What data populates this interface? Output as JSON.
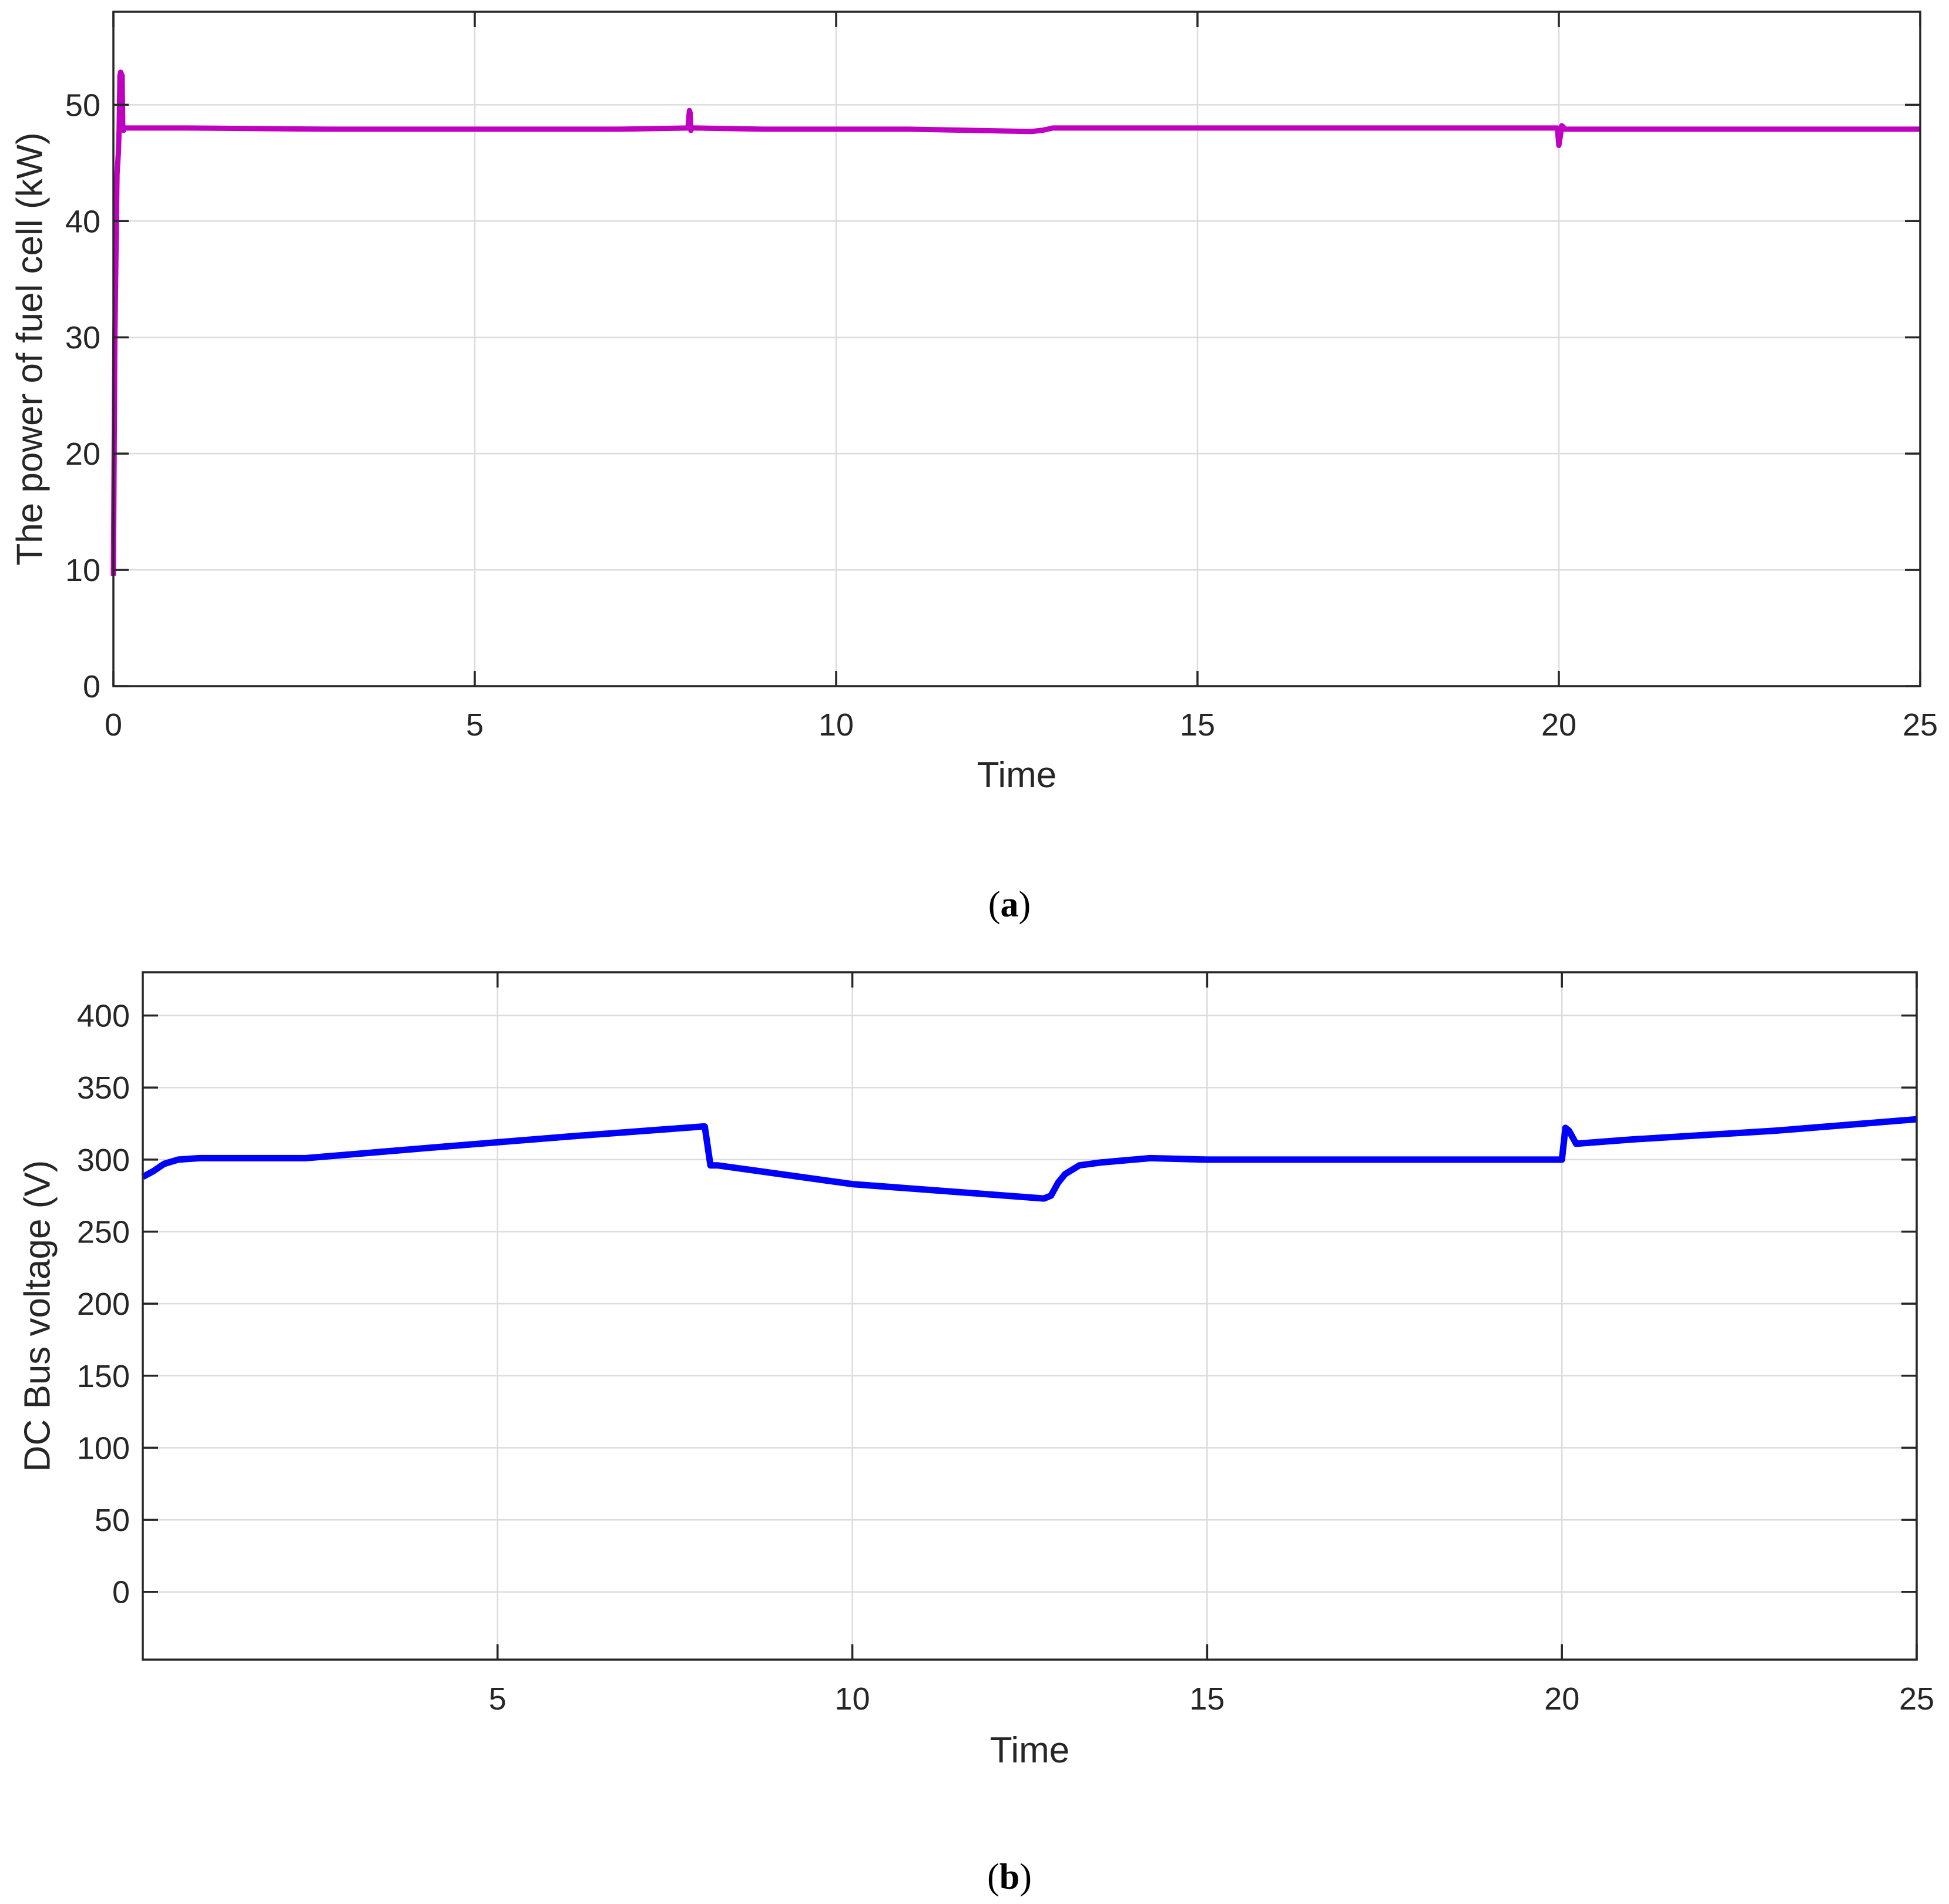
{
  "chart_data": [
    {
      "type": "line",
      "panel_label": "a",
      "xlabel": "Time",
      "ylabel": "The power of fuel cell (kW)",
      "xlim": [
        0,
        25
      ],
      "ylim": [
        0,
        58
      ],
      "xticks": [
        0,
        5,
        10,
        15,
        20,
        25
      ],
      "yticks": [
        0,
        10,
        20,
        30,
        40,
        50
      ],
      "grid": true,
      "series": [
        {
          "color": "#c000c0",
          "x": [
            0,
            0.02,
            0.05,
            0.07,
            0.08,
            0.09,
            0.1,
            0.12,
            0.13,
            0.14,
            0.15,
            0.2,
            1,
            3,
            5,
            7,
            7.95,
            7.97,
            7.98,
            7.99,
            8.0,
            8.02,
            8.05,
            9,
            11,
            12.7,
            12.85,
            13.0,
            14,
            15,
            17,
            19,
            19.98,
            20.0,
            20.02,
            20.04,
            20.06,
            20.08,
            20.2,
            21,
            23,
            25
          ],
          "y": [
            9.5,
            30,
            44,
            46,
            48,
            52.5,
            52.8,
            52.5,
            48,
            47.8,
            48,
            48,
            48,
            47.9,
            47.9,
            47.9,
            48,
            49.5,
            49.3,
            47.8,
            48,
            48,
            48,
            47.9,
            47.9,
            47.7,
            47.8,
            48,
            48,
            48,
            48,
            48,
            48,
            46.5,
            47.3,
            48.2,
            48.1,
            47.9,
            47.9,
            47.9,
            47.9,
            47.9
          ]
        }
      ]
    },
    {
      "type": "line",
      "panel_label": "b",
      "xlabel": "Time",
      "ylabel": "DC Bus voltage (V)",
      "xlim": [
        0,
        25
      ],
      "ylim": [
        -47,
        430
      ],
      "xticks": [
        5,
        10,
        15,
        20,
        25
      ],
      "yticks": [
        0,
        50,
        100,
        150,
        200,
        250,
        300,
        350,
        400
      ],
      "grid": true,
      "series": [
        {
          "color": "#0000ff",
          "x": [
            0,
            0.15,
            0.3,
            0.5,
            0.8,
            1.2,
            1.7,
            2.3,
            4,
            6,
            7.9,
            7.92,
            8.0,
            8.1,
            10,
            12.7,
            12.8,
            12.9,
            13.0,
            13.2,
            13.5,
            14.2,
            15,
            17,
            19,
            19.9,
            20.0,
            20.05,
            20.1,
            20.2,
            21,
            23,
            25
          ],
          "y": [
            288,
            292,
            297,
            300,
            301,
            301,
            301,
            301,
            308,
            316,
            323,
            323,
            296,
            296,
            283,
            273,
            275,
            284,
            290,
            296,
            298,
            301,
            300,
            300,
            300,
            300,
            300,
            322,
            320,
            311,
            314,
            320,
            328
          ]
        }
      ]
    }
  ]
}
